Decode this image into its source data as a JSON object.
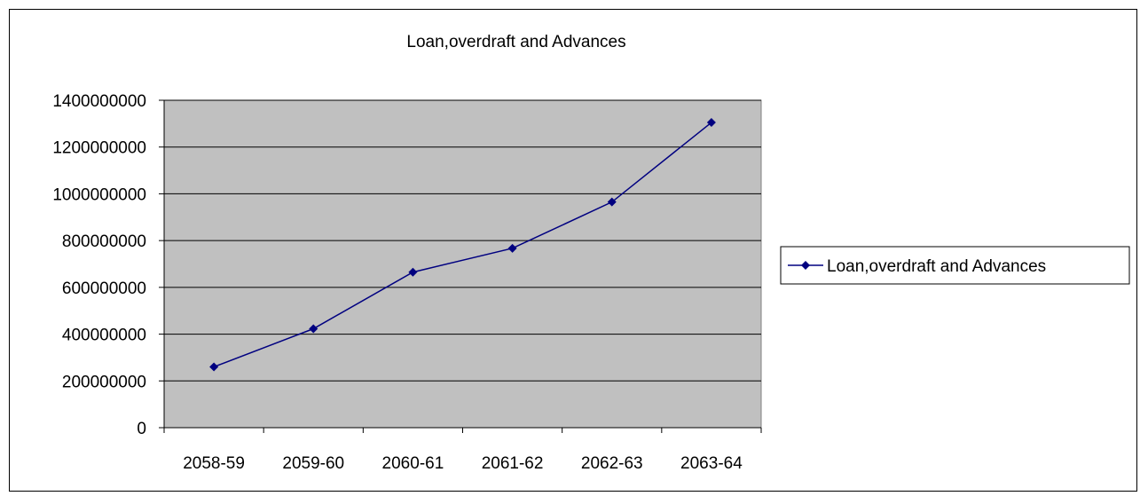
{
  "chart_data": {
    "type": "line",
    "title": "Loan,overdraft and Advances",
    "xlabel": "",
    "ylabel": "",
    "categories": [
      "2058-59",
      "2059-60",
      "2060-61",
      "2061-62",
      "2062-63",
      "2063-64"
    ],
    "series": [
      {
        "name": "Loan,overdraft and Advances",
        "values": [
          260000000,
          423000000,
          665000000,
          767000000,
          965000000,
          1305000000
        ],
        "color": "#000080"
      }
    ],
    "ylim": [
      0,
      1400000000
    ],
    "yticks": [
      "0",
      "200000000",
      "400000000",
      "600000000",
      "800000000",
      "1000000000",
      "1200000000",
      "1400000000"
    ],
    "grid": true,
    "plot_background": "#c0c0c0",
    "legend_position": "right"
  }
}
